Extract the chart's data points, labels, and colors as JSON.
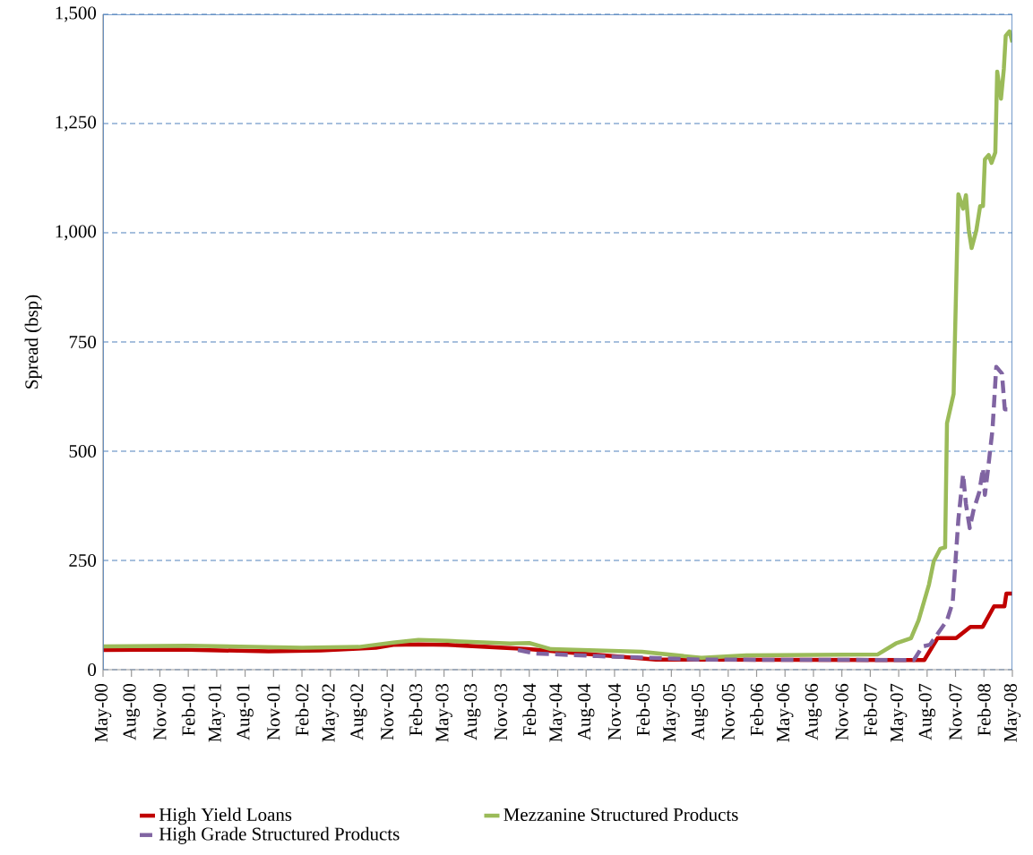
{
  "chart_data": {
    "type": "line",
    "ylabel": "Spread (bsp)",
    "xlim": [
      "2000-05",
      "2008-05"
    ],
    "xticks": [
      {
        "value": "2000-05",
        "label": "May-00"
      },
      {
        "value": "2000-08",
        "label": "Aug-00"
      },
      {
        "value": "2000-11",
        "label": "Nov-00"
      },
      {
        "value": "2001-02",
        "label": "Feb-01"
      },
      {
        "value": "2001-05",
        "label": "May-01"
      },
      {
        "value": "2001-08",
        "label": "Aug-01"
      },
      {
        "value": "2001-11",
        "label": "Nov-01"
      },
      {
        "value": "2002-02",
        "label": "Feb-02"
      },
      {
        "value": "2002-05",
        "label": "May-02"
      },
      {
        "value": "2002-08",
        "label": "Aug-02"
      },
      {
        "value": "2002-11",
        "label": "Nov-02"
      },
      {
        "value": "2003-02",
        "label": "Feb-03"
      },
      {
        "value": "2003-05",
        "label": "May-03"
      },
      {
        "value": "2003-08",
        "label": "Aug-03"
      },
      {
        "value": "2003-11",
        "label": "Nov-03"
      },
      {
        "value": "2004-02",
        "label": "Feb-04"
      },
      {
        "value": "2004-05",
        "label": "May-04"
      },
      {
        "value": "2004-08",
        "label": "Aug-04"
      },
      {
        "value": "2004-11",
        "label": "Nov-04"
      },
      {
        "value": "2005-02",
        "label": "Feb-05"
      },
      {
        "value": "2005-05",
        "label": "May-05"
      },
      {
        "value": "2005-08",
        "label": "Aug-05"
      },
      {
        "value": "2005-11",
        "label": "Nov-05"
      },
      {
        "value": "2006-02",
        "label": "Feb-06"
      },
      {
        "value": "2006-05",
        "label": "May-06"
      },
      {
        "value": "2006-08",
        "label": "Aug-06"
      },
      {
        "value": "2006-11",
        "label": "Nov-06"
      },
      {
        "value": "2007-02",
        "label": "Feb-07"
      },
      {
        "value": "2007-05",
        "label": "May-07"
      },
      {
        "value": "2007-08",
        "label": "Aug-07"
      },
      {
        "value": "2007-11",
        "label": "Nov-07"
      },
      {
        "value": "2008-02",
        "label": "Feb-08"
      },
      {
        "value": "2008-05",
        "label": "May-08"
      }
    ],
    "ylim": [
      0,
      1500
    ],
    "yticks": [
      0,
      250,
      500,
      750,
      {
        "value": 1000,
        "label": "1,000"
      },
      {
        "value": 1250,
        "label": "1,250"
      },
      {
        "value": 1500,
        "label": "1,500"
      }
    ],
    "grid": "y",
    "legend": "bottom",
    "series": [
      {
        "name": "High Yield Loans",
        "color": "#c00000",
        "line_style": "solid",
        "x": [
          "2000-05",
          "2001-01",
          "2001-10-15",
          "2002-04",
          "2002-09-25",
          "2002-11-20",
          "2003-02-10",
          "2003-05-12",
          "2004-01-28",
          "2004-07-18",
          "2005-03-12",
          "2007-07-22",
          "2007-09-04",
          "2007-11-03",
          "2007-12-18",
          "2008-01-27",
          "2008-03-03",
          "2008-04-06",
          "2008-04-12",
          "2008-05"
        ],
        "values": [
          45,
          46,
          42,
          44,
          50,
          57,
          58,
          57,
          47,
          37,
          23,
          22,
          72,
          72,
          98,
          98,
          145,
          145,
          174,
          174
        ]
      },
      {
        "name": "Mezzanine Structured Products",
        "color": "#9bbb59",
        "line_style": "solid",
        "x": [
          "2000-05",
          "2001-02",
          "2002-02",
          "2002-08",
          "2002-11-20",
          "2003-02-10",
          "2003-05-12",
          "2003-12",
          "2004-02-01",
          "2004-04-10",
          "2005-01-28",
          "2005-08-06",
          "2005-12-28",
          "2007-02-25",
          "2007-04-22",
          "2007-06-10",
          "2007-07-04",
          "2007-08-07",
          "2007-08-22",
          "2007-09-13",
          "2007-09-28",
          "2007-10-04",
          "2007-10-25",
          "2007-11-10",
          "2007-11-25",
          "2007-12-04",
          "2007-12-13",
          "2007-12-22",
          "2008-01-07",
          "2008-01-19",
          "2008-01-28",
          "2008-02-04",
          "2008-02-16",
          "2008-02-25",
          "2008-03-07",
          "2008-03-13",
          "2008-03-25",
          "2008-04-04",
          "2008-04-10",
          "2008-04-22",
          "2008-05"
        ],
        "values": [
          53,
          55,
          50,
          52,
          62,
          68,
          66,
          60,
          61,
          47,
          41,
          27,
          33,
          35,
          60,
          72,
          113,
          195,
          248,
          277,
          280,
          564,
          631,
          1088,
          1055,
          1086,
          1006,
          965,
          1006,
          1061,
          1061,
          1168,
          1178,
          1160,
          1184,
          1369,
          1307,
          1375,
          1451,
          1461,
          1436
        ]
      },
      {
        "name": "High Grade Structured Products",
        "color": "#8064a2",
        "line_style": "dashed",
        "x": [
          "2003-12-25",
          "2004-02-22",
          "2004-09-07",
          "2005-08-06",
          "2007-06-19",
          "2007-07-16",
          "2007-08-10",
          "2007-10-04",
          "2007-10-22",
          "2007-11-10",
          "2007-11-25",
          "2007-12-04",
          "2007-12-16",
          "2007-12-28",
          "2008-01-16",
          "2008-01-28",
          "2008-02-04",
          "2008-02-13",
          "2008-02-28",
          "2008-03-10",
          "2008-03-28",
          "2008-04-07",
          "2008-04-22"
        ],
        "values": [
          45,
          37,
          31,
          23,
          22,
          53,
          57,
          113,
          154,
          344,
          447,
          379,
          324,
          365,
          406,
          461,
          400,
          453,
          549,
          693,
          678,
          596,
          596
        ]
      }
    ]
  }
}
